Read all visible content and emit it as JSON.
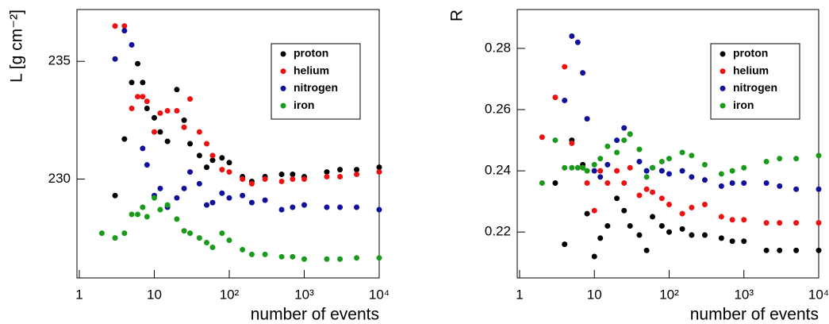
{
  "chart_data": [
    {
      "type": "scatter",
      "x_label": "number of events",
      "y_label": "L [g cm⁻²]",
      "log_x": true,
      "legend_position": "upper right",
      "x": [
        2,
        3,
        4,
        5,
        6,
        7,
        8,
        10,
        12,
        15,
        20,
        25,
        30,
        40,
        50,
        60,
        80,
        100,
        150,
        200,
        300,
        500,
        700,
        1000,
        2000,
        3000,
        5000,
        10000
      ],
      "xlim": [
        0.93,
        10000
      ],
      "ylim": [
        225.8,
        237.2
      ],
      "xticks": [
        1,
        10,
        {
          "value": 100,
          "label": "10²"
        },
        {
          "value": 1000,
          "label": "10³"
        },
        {
          "value": 10000,
          "label": "10⁴"
        }
      ],
      "yticks": [
        230,
        235
      ],
      "series": [
        {
          "name": "proton",
          "color": "#000000",
          "values": [
            null,
            229.3,
            231.7,
            234.1,
            234.9,
            234.1,
            233.0,
            232.6,
            232.0,
            231.6,
            233.8,
            232.5,
            231.5,
            231.0,
            230.5,
            230.8,
            230.9,
            230.7,
            230.1,
            229.9,
            230.1,
            230.2,
            230.2,
            230.1,
            230.3,
            230.4,
            230.4,
            230.5
          ]
        },
        {
          "name": "helium",
          "color": "#ee1111",
          "values": [
            null,
            236.5,
            236.5,
            233.0,
            233.5,
            233.5,
            233.3,
            232.0,
            232.8,
            232.9,
            232.9,
            232.2,
            233.4,
            232.0,
            231.5,
            231.0,
            230.4,
            230.3,
            230.0,
            229.8,
            230.0,
            229.9,
            230.0,
            230.0,
            230.1,
            230.1,
            230.2,
            230.3
          ]
        },
        {
          "name": "nitrogen",
          "color": "#10109a",
          "values": [
            null,
            235.1,
            236.3,
            235.7,
            null,
            231.3,
            230.6,
            229.3,
            229.6,
            228.8,
            229.2,
            229.6,
            230.3,
            229.8,
            228.9,
            229.0,
            229.4,
            229.2,
            229.3,
            229.0,
            229.1,
            228.7,
            228.8,
            228.9,
            228.8,
            228.8,
            228.8,
            228.7
          ]
        },
        {
          "name": "iron",
          "color": "#1a9a1a",
          "values": [
            227.7,
            227.5,
            227.7,
            228.5,
            228.5,
            228.8,
            228.4,
            229.2,
            228.7,
            228.9,
            228.3,
            227.8,
            227.7,
            227.5,
            227.3,
            227.1,
            227.7,
            227.4,
            227.0,
            226.8,
            226.8,
            226.7,
            226.7,
            226.6,
            226.6,
            226.6,
            226.65,
            226.65
          ]
        }
      ]
    },
    {
      "type": "scatter",
      "x_label": "number of events",
      "y_label": "R",
      "log_x": true,
      "legend_position": "upper right",
      "x": [
        2,
        3,
        4,
        5,
        6,
        7,
        8,
        10,
        12,
        15,
        20,
        25,
        30,
        40,
        50,
        60,
        80,
        100,
        150,
        200,
        300,
        500,
        700,
        1000,
        2000,
        3000,
        5000,
        10000
      ],
      "xlim": [
        0.93,
        10000
      ],
      "ylim": [
        0.205,
        0.2927
      ],
      "xticks": [
        1,
        10,
        {
          "value": 100,
          "label": "10²"
        },
        {
          "value": 1000,
          "label": "10³"
        },
        {
          "value": 10000,
          "label": "10⁴"
        }
      ],
      "yticks": [
        0.22,
        0.24,
        0.26,
        0.28
      ],
      "series": [
        {
          "name": "proton",
          "color": "#000000",
          "values": [
            null,
            0.236,
            0.216,
            0.25,
            null,
            0.242,
            0.226,
            0.212,
            0.218,
            0.222,
            0.231,
            0.227,
            0.222,
            0.219,
            0.214,
            0.225,
            0.222,
            0.22,
            0.221,
            0.219,
            0.219,
            0.218,
            0.217,
            0.217,
            0.214,
            0.214,
            0.214,
            0.214
          ]
        },
        {
          "name": "helium",
          "color": "#ee1111",
          "values": [
            0.251,
            0.264,
            0.274,
            0.249,
            null,
            0.241,
            0.236,
            0.227,
            0.24,
            0.236,
            0.24,
            0.236,
            0.241,
            0.232,
            0.234,
            0.233,
            0.231,
            0.229,
            0.226,
            0.228,
            0.229,
            0.225,
            0.224,
            0.224,
            0.223,
            0.223,
            0.223,
            0.223
          ]
        },
        {
          "name": "nitrogen",
          "color": "#10109a",
          "values": [
            null,
            null,
            0.263,
            0.284,
            0.282,
            0.272,
            0.257,
            0.24,
            0.238,
            0.242,
            0.25,
            0.254,
            0.252,
            0.243,
            0.24,
            0.241,
            0.24,
            0.239,
            0.24,
            0.238,
            0.237,
            0.235,
            0.236,
            0.236,
            0.236,
            0.235,
            0.234,
            0.234
          ]
        },
        {
          "name": "iron",
          "color": "#1a9a1a",
          "values": [
            0.236,
            0.25,
            0.241,
            0.241,
            0.241,
            0.241,
            0.24,
            0.242,
            0.244,
            0.248,
            0.246,
            0.25,
            0.252,
            0.247,
            0.238,
            0.241,
            0.243,
            0.244,
            0.246,
            0.245,
            0.242,
            0.239,
            0.24,
            0.241,
            0.243,
            0.244,
            0.244,
            0.245
          ]
        }
      ]
    }
  ]
}
